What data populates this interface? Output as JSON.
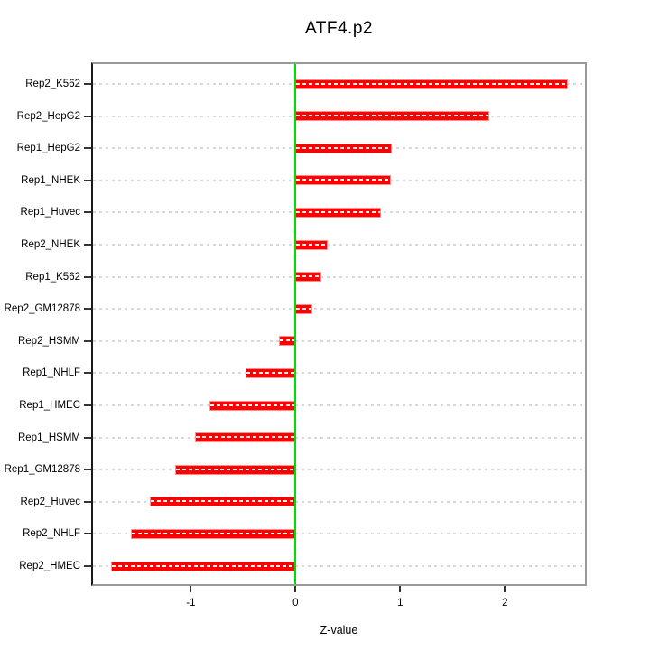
{
  "chart_data": {
    "type": "bar",
    "orientation": "horizontal",
    "title": "ATF4.p2",
    "xlabel": "Z-value",
    "ylabel": "",
    "legend": "none",
    "grid": "dotted-horizontal-per-category",
    "categories": [
      "Rep2_K562",
      "Rep2_HepG2",
      "Rep1_HepG2",
      "Rep1_NHEK",
      "Rep1_Huvec",
      "Rep2_NHEK",
      "Rep1_K562",
      "Rep2_GM12878",
      "Rep2_HSMM",
      "Rep1_NHLF",
      "Rep1_HMEC",
      "Rep1_HSMM",
      "Rep1_GM12878",
      "Rep2_Huvec",
      "Rep2_NHLF",
      "Rep2_HMEC"
    ],
    "values": [
      2.6,
      1.85,
      0.92,
      0.91,
      0.82,
      0.31,
      0.25,
      0.16,
      -0.16,
      -0.48,
      -0.82,
      -0.96,
      -1.15,
      -1.39,
      -1.57,
      -1.76
    ],
    "xlim": [
      -1.935,
      2.765
    ],
    "xticks": [
      "-1",
      "0",
      "1",
      "2"
    ],
    "xtick_values": [
      -1,
      0,
      1,
      2
    ],
    "zero_reference_line": 0,
    "colors": {
      "bar_fill": "#ff0000",
      "bar_border": "#ff9090",
      "zero_line": "#00dd00",
      "grid_line": "#d9d9d9",
      "box_border": "#999999",
      "left_axis_line": "#1a1a1a",
      "tick": "#333333",
      "text": "#000000",
      "background": "#ffffff"
    }
  }
}
